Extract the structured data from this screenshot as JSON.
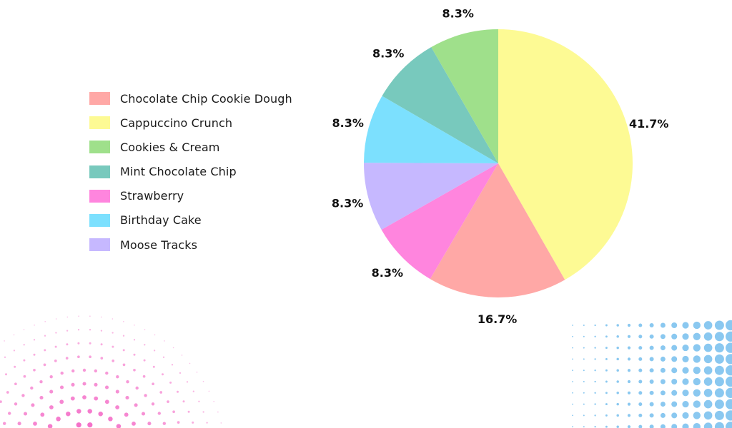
{
  "colors": {
    "background": "#ffffff",
    "pink_dots": "#f472c9",
    "blue_dots": "#8ac8f0"
  },
  "chart_data": {
    "type": "pie",
    "start_angle_deg": 0,
    "direction": "clockwise",
    "legend_position": "left",
    "legend": [
      {
        "name": "Chocolate Chip Cookie Dough",
        "color": "#ffa8a6"
      },
      {
        "name": "Cappuccino Crunch",
        "color": "#fdfa94"
      },
      {
        "name": "Cookies & Cream",
        "color": "#9fe08b"
      },
      {
        "name": "Mint Chocolate Chip",
        "color": "#78c9bd"
      },
      {
        "name": "Strawberry",
        "color": "#ff85de"
      },
      {
        "name": "Birthday Cake",
        "color": "#7ce0fe"
      },
      {
        "name": "Moose Tracks",
        "color": "#c6b8ff"
      }
    ],
    "slices": [
      {
        "name": "Cappuccino Crunch",
        "value": 41.7,
        "label": "41.7%",
        "color": "#fdfa94"
      },
      {
        "name": "Chocolate Chip Cookie Dough",
        "value": 16.7,
        "label": "16.7%",
        "color": "#ffa8a6"
      },
      {
        "name": "Strawberry",
        "value": 8.3,
        "label": "8.3%",
        "color": "#ff85de"
      },
      {
        "name": "Moose Tracks",
        "value": 8.3,
        "label": "8.3%",
        "color": "#c6b8ff"
      },
      {
        "name": "Birthday Cake",
        "value": 8.3,
        "label": "8.3%",
        "color": "#7ce0fe"
      },
      {
        "name": "Mint Chocolate Chip",
        "value": 8.3,
        "label": "8.3%",
        "color": "#78c9bd"
      },
      {
        "name": "Cookies & Cream",
        "value": 8.3,
        "label": "8.3%",
        "color": "#9fe08b"
      }
    ]
  }
}
